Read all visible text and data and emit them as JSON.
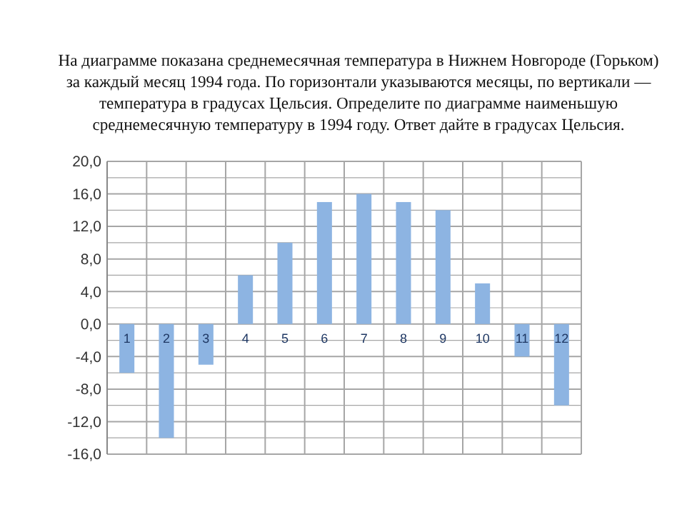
{
  "chart_data": {
    "type": "bar",
    "title": "На диаграмме показана среднемесячная температура в Нижнем Новгороде (Горьком)\nза каждый месяц 1994 года. По горизонтали указываются месяцы, по вертикали —\nтемпература в градусах Цельсия. Определите по диаграмме наименьшую\nсреднемесячную температуру в 1994 году. Ответ дайте в градусах Цельсия.",
    "categories": [
      "1",
      "2",
      "3",
      "4",
      "5",
      "6",
      "7",
      "8",
      "9",
      "10",
      "11",
      "12"
    ],
    "values": [
      -6,
      -14,
      -5,
      6,
      10,
      15,
      16,
      15,
      14,
      5,
      -4,
      -10
    ],
    "color": "#8db4e2",
    "ylim": [
      -16,
      20
    ],
    "yticks": [
      {
        "value": -16,
        "label": "-16,0"
      },
      {
        "value": -14,
        "label": null
      },
      {
        "value": -12,
        "label": "-12,0"
      },
      {
        "value": -10,
        "label": null
      },
      {
        "value": -8,
        "label": "-8,0"
      },
      {
        "value": -6,
        "label": null
      },
      {
        "value": -4,
        "label": "-4,0"
      },
      {
        "value": -2,
        "label": null
      },
      {
        "value": 0,
        "label": "0,0"
      },
      {
        "value": 2,
        "label": null
      },
      {
        "value": 4,
        "label": "4,0"
      },
      {
        "value": 6,
        "label": null
      },
      {
        "value": 8,
        "label": "8,0"
      },
      {
        "value": 10,
        "label": null
      },
      {
        "value": 12,
        "label": "12,0"
      },
      {
        "value": 14,
        "label": null
      },
      {
        "value": 16,
        "label": "16,0"
      },
      {
        "value": 18,
        "label": null
      },
      {
        "value": 20,
        "label": "20,0"
      }
    ],
    "grid": true
  }
}
